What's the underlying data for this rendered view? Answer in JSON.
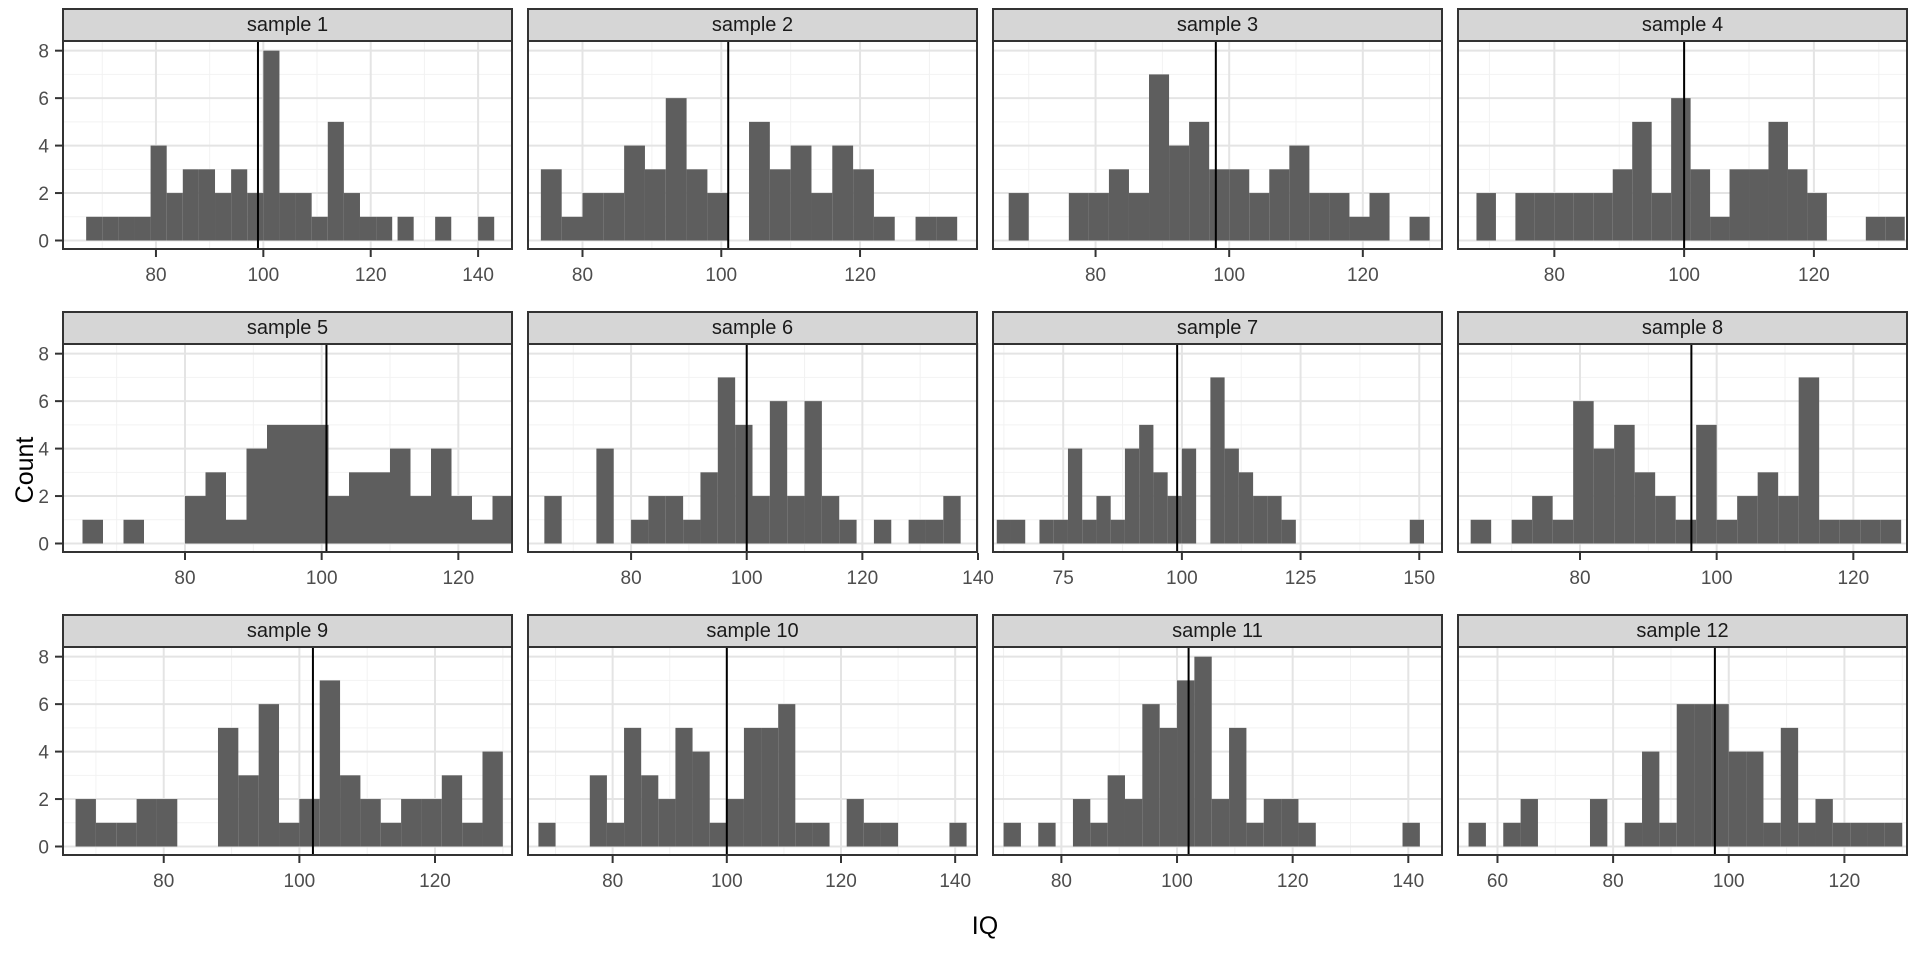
{
  "figure": {
    "xlabel": "IQ",
    "ylabel": "Count",
    "yticks": [
      0,
      2,
      4,
      6,
      8
    ],
    "ylim": [
      -0.4,
      8.45
    ]
  },
  "style": {
    "bar_color": "#5E5E5E",
    "strip_bg": "#D6D6D6",
    "panel_border": "#333333",
    "grid_major": "#E4E4E4",
    "grid_minor": "#F2F2F2",
    "vline_color": "#000000",
    "tick_color": "#333333",
    "tick_label_color": "#4D4D4D"
  },
  "chart_data": [
    {
      "type": "histogram-facet",
      "title": "sample 1",
      "xmin": 62.5,
      "xmax": 146.5,
      "xticks": [
        80,
        100,
        120,
        140
      ],
      "vline": 99,
      "binwidth": 3,
      "bars": [
        [
          67,
          1
        ],
        [
          70,
          1
        ],
        [
          73,
          1
        ],
        [
          76,
          1
        ],
        [
          79,
          4
        ],
        [
          82,
          2
        ],
        [
          85,
          3
        ],
        [
          88,
          3
        ],
        [
          91,
          2
        ],
        [
          94,
          3
        ],
        [
          97,
          2
        ],
        [
          100,
          8
        ],
        [
          103,
          2
        ],
        [
          106,
          2
        ],
        [
          109,
          1
        ],
        [
          112,
          5
        ],
        [
          115,
          2
        ],
        [
          118,
          1
        ],
        [
          121,
          1
        ],
        [
          125,
          1
        ],
        [
          132,
          1
        ],
        [
          140,
          1
        ]
      ]
    },
    {
      "type": "histogram-facet",
      "title": "sample 2",
      "xmin": 72,
      "xmax": 137,
      "xticks": [
        80,
        100,
        120
      ],
      "vline": 101,
      "binwidth": 3,
      "bars": [
        [
          74,
          3
        ],
        [
          77,
          1
        ],
        [
          80,
          2
        ],
        [
          83,
          2
        ],
        [
          86,
          4
        ],
        [
          89,
          3
        ],
        [
          92,
          6
        ],
        [
          95,
          3
        ],
        [
          98,
          2
        ],
        [
          104,
          5
        ],
        [
          107,
          3
        ],
        [
          110,
          4
        ],
        [
          113,
          2
        ],
        [
          116,
          4
        ],
        [
          119,
          3
        ],
        [
          122,
          1
        ],
        [
          128,
          1
        ],
        [
          131,
          1
        ]
      ]
    },
    {
      "type": "histogram-facet",
      "title": "sample 3",
      "xmin": 64.5,
      "xmax": 132,
      "xticks": [
        80,
        100,
        120
      ],
      "vline": 98,
      "binwidth": 3,
      "bars": [
        [
          67,
          2
        ],
        [
          76,
          2
        ],
        [
          79,
          2
        ],
        [
          82,
          3
        ],
        [
          85,
          2
        ],
        [
          88,
          7
        ],
        [
          91,
          4
        ],
        [
          94,
          5
        ],
        [
          97,
          3
        ],
        [
          100,
          3
        ],
        [
          103,
          2
        ],
        [
          106,
          3
        ],
        [
          109,
          4
        ],
        [
          112,
          2
        ],
        [
          115,
          2
        ],
        [
          118,
          1
        ],
        [
          121,
          2
        ],
        [
          127,
          1
        ]
      ]
    },
    {
      "type": "histogram-facet",
      "title": "sample 4",
      "xmin": 65,
      "xmax": 134.5,
      "xticks": [
        80,
        100,
        120
      ],
      "vline": 100,
      "binwidth": 3,
      "bars": [
        [
          68,
          2
        ],
        [
          74,
          2
        ],
        [
          77,
          2
        ],
        [
          80,
          2
        ],
        [
          83,
          2
        ],
        [
          86,
          2
        ],
        [
          89,
          3
        ],
        [
          92,
          5
        ],
        [
          95,
          2
        ],
        [
          98,
          6
        ],
        [
          101,
          3
        ],
        [
          104,
          1
        ],
        [
          107,
          3
        ],
        [
          110,
          3
        ],
        [
          113,
          5
        ],
        [
          116,
          3
        ],
        [
          119,
          2
        ],
        [
          128,
          1
        ],
        [
          131,
          1
        ]
      ]
    },
    {
      "type": "histogram-facet",
      "title": "sample 5",
      "xmin": 62,
      "xmax": 128,
      "xticks": [
        80,
        100,
        120
      ],
      "vline": 100.7,
      "binwidth": 3,
      "bars": [
        [
          65,
          1
        ],
        [
          71,
          1
        ],
        [
          80,
          2
        ],
        [
          83,
          3
        ],
        [
          86,
          1
        ],
        [
          89,
          4
        ],
        [
          92,
          5
        ],
        [
          95,
          5
        ],
        [
          98,
          5
        ],
        [
          101,
          2
        ],
        [
          104,
          3
        ],
        [
          107,
          3
        ],
        [
          110,
          4
        ],
        [
          113,
          2
        ],
        [
          116,
          4
        ],
        [
          119,
          2
        ],
        [
          122,
          1
        ],
        [
          125,
          2
        ]
      ]
    },
    {
      "type": "histogram-facet",
      "title": "sample 6",
      "xmin": 62,
      "xmax": 140,
      "xticks": [
        80,
        100,
        120,
        140
      ],
      "vline": 100,
      "binwidth": 3,
      "bars": [
        [
          65,
          2
        ],
        [
          74,
          4
        ],
        [
          80,
          1
        ],
        [
          83,
          2
        ],
        [
          86,
          2
        ],
        [
          89,
          1
        ],
        [
          92,
          3
        ],
        [
          95,
          7
        ],
        [
          98,
          5
        ],
        [
          101,
          2
        ],
        [
          104,
          6
        ],
        [
          107,
          2
        ],
        [
          110,
          6
        ],
        [
          113,
          2
        ],
        [
          116,
          1
        ],
        [
          122,
          1
        ],
        [
          128,
          1
        ],
        [
          131,
          1
        ],
        [
          134,
          2
        ]
      ]
    },
    {
      "type": "histogram-facet",
      "title": "sample 7",
      "xmin": 60,
      "xmax": 155,
      "xticks": [
        75,
        100,
        125,
        150
      ],
      "vline": 99,
      "binwidth": 3,
      "bars": [
        [
          61,
          1
        ],
        [
          64,
          1
        ],
        [
          70,
          1
        ],
        [
          73,
          1
        ],
        [
          76,
          4
        ],
        [
          79,
          1
        ],
        [
          82,
          2
        ],
        [
          85,
          1
        ],
        [
          88,
          4
        ],
        [
          91,
          5
        ],
        [
          94,
          3
        ],
        [
          97,
          2
        ],
        [
          100,
          4
        ],
        [
          106,
          7
        ],
        [
          109,
          4
        ],
        [
          112,
          3
        ],
        [
          115,
          2
        ],
        [
          118,
          2
        ],
        [
          121,
          1
        ],
        [
          148,
          1
        ]
      ]
    },
    {
      "type": "histogram-facet",
      "title": "sample 8",
      "xmin": 62,
      "xmax": 128,
      "xticks": [
        80,
        100,
        120
      ],
      "vline": 96.3,
      "binwidth": 3,
      "bars": [
        [
          64,
          1
        ],
        [
          70,
          1
        ],
        [
          73,
          2
        ],
        [
          76,
          1
        ],
        [
          79,
          6
        ],
        [
          82,
          4
        ],
        [
          85,
          5
        ],
        [
          88,
          3
        ],
        [
          91,
          2
        ],
        [
          94,
          1
        ],
        [
          97,
          5
        ],
        [
          100,
          1
        ],
        [
          103,
          2
        ],
        [
          106,
          3
        ],
        [
          109,
          2
        ],
        [
          112,
          7
        ],
        [
          115,
          1
        ],
        [
          118,
          1
        ],
        [
          121,
          1
        ],
        [
          124,
          1
        ]
      ]
    },
    {
      "type": "histogram-facet",
      "title": "sample 9",
      "xmin": 65,
      "xmax": 131.5,
      "xticks": [
        80,
        100,
        120
      ],
      "vline": 102,
      "binwidth": 3,
      "bars": [
        [
          67,
          2
        ],
        [
          70,
          1
        ],
        [
          73,
          1
        ],
        [
          76,
          2
        ],
        [
          79,
          2
        ],
        [
          88,
          5
        ],
        [
          91,
          3
        ],
        [
          94,
          6
        ],
        [
          97,
          1
        ],
        [
          100,
          2
        ],
        [
          103,
          7
        ],
        [
          106,
          3
        ],
        [
          109,
          2
        ],
        [
          112,
          1
        ],
        [
          115,
          2
        ],
        [
          118,
          2
        ],
        [
          121,
          3
        ],
        [
          124,
          1
        ],
        [
          127,
          4
        ]
      ]
    },
    {
      "type": "histogram-facet",
      "title": "sample 10",
      "xmin": 65,
      "xmax": 144,
      "xticks": [
        80,
        100,
        120,
        140
      ],
      "vline": 100,
      "binwidth": 3,
      "bars": [
        [
          67,
          1
        ],
        [
          76,
          3
        ],
        [
          79,
          1
        ],
        [
          82,
          5
        ],
        [
          85,
          3
        ],
        [
          88,
          2
        ],
        [
          91,
          5
        ],
        [
          94,
          4
        ],
        [
          97,
          1
        ],
        [
          100,
          2
        ],
        [
          103,
          5
        ],
        [
          106,
          5
        ],
        [
          109,
          6
        ],
        [
          112,
          1
        ],
        [
          115,
          1
        ],
        [
          121,
          2
        ],
        [
          124,
          1
        ],
        [
          127,
          1
        ],
        [
          139,
          1
        ]
      ]
    },
    {
      "type": "histogram-facet",
      "title": "sample 11",
      "xmin": 68,
      "xmax": 146,
      "xticks": [
        80,
        100,
        120,
        140
      ],
      "vline": 102,
      "binwidth": 3,
      "bars": [
        [
          70,
          1
        ],
        [
          76,
          1
        ],
        [
          82,
          2
        ],
        [
          85,
          1
        ],
        [
          88,
          3
        ],
        [
          91,
          2
        ],
        [
          94,
          6
        ],
        [
          97,
          5
        ],
        [
          100,
          7
        ],
        [
          103,
          8
        ],
        [
          106,
          2
        ],
        [
          109,
          5
        ],
        [
          112,
          1
        ],
        [
          115,
          2
        ],
        [
          118,
          2
        ],
        [
          121,
          1
        ],
        [
          139,
          1
        ]
      ]
    },
    {
      "type": "histogram-facet",
      "title": "sample 12",
      "xmin": 53,
      "xmax": 131,
      "xticks": [
        60,
        80,
        100,
        120
      ],
      "vline": 97.6,
      "binwidth": 3,
      "bars": [
        [
          55,
          1
        ],
        [
          61,
          1
        ],
        [
          64,
          2
        ],
        [
          76,
          2
        ],
        [
          82,
          1
        ],
        [
          85,
          4
        ],
        [
          88,
          1
        ],
        [
          91,
          6
        ],
        [
          94,
          6
        ],
        [
          97,
          6
        ],
        [
          100,
          4
        ],
        [
          103,
          4
        ],
        [
          106,
          1
        ],
        [
          109,
          5
        ],
        [
          112,
          1
        ],
        [
          115,
          2
        ],
        [
          118,
          1
        ],
        [
          121,
          1
        ],
        [
          124,
          1
        ],
        [
          127,
          1
        ]
      ]
    }
  ]
}
